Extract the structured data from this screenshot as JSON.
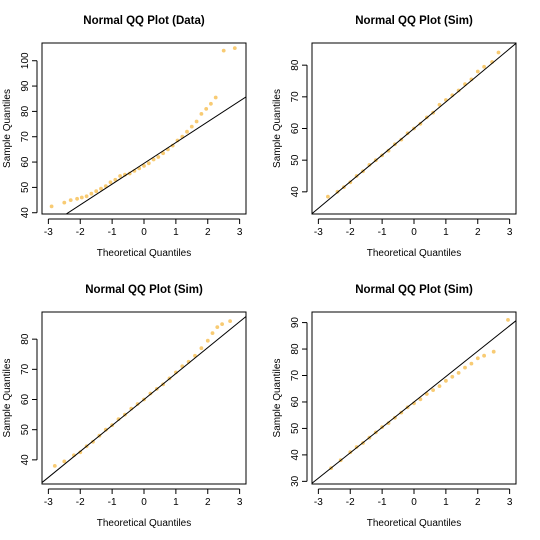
{
  "colors": {
    "points": "#F2A100",
    "line": "#000000"
  },
  "chart_data": [
    {
      "type": "scatter",
      "title": "Normal QQ Plot (Data)",
      "xlabel": "Theoretical Quantiles",
      "ylabel": "Sample Quantiles",
      "xlim": [
        -3.2,
        3.2
      ],
      "ylim": [
        39.5,
        107
      ],
      "xticks": [
        -3,
        -2,
        -1,
        0,
        1,
        2,
        3
      ],
      "yticks": [
        40,
        50,
        60,
        70,
        80,
        90,
        100
      ],
      "reference_line": {
        "intercept": 59.5,
        "slope": 8.2
      },
      "points": [
        [
          -2.9,
          42.5
        ],
        [
          -2.5,
          44
        ],
        [
          -2.3,
          45
        ],
        [
          -2.1,
          45.5
        ],
        [
          -1.95,
          46
        ],
        [
          -1.8,
          46.5
        ],
        [
          -1.65,
          47.5
        ],
        [
          -1.5,
          48.5
        ],
        [
          -1.35,
          49.5
        ],
        [
          -1.2,
          50.5
        ],
        [
          -1.05,
          52
        ],
        [
          -0.9,
          53
        ],
        [
          -0.75,
          54.5
        ],
        [
          -0.6,
          55
        ],
        [
          -0.45,
          55.5
        ],
        [
          -0.3,
          56.5
        ],
        [
          -0.15,
          57.5
        ],
        [
          0,
          58.5
        ],
        [
          0.15,
          59.5
        ],
        [
          0.3,
          61
        ],
        [
          0.45,
          62
        ],
        [
          0.6,
          63.5
        ],
        [
          0.75,
          65
        ],
        [
          0.9,
          66.5
        ],
        [
          1.05,
          68.5
        ],
        [
          1.2,
          70
        ],
        [
          1.35,
          72
        ],
        [
          1.5,
          74
        ],
        [
          1.65,
          76
        ],
        [
          1.8,
          79
        ],
        [
          1.95,
          81
        ],
        [
          2.1,
          83
        ],
        [
          2.25,
          85.5
        ],
        [
          2.5,
          104
        ],
        [
          2.85,
          105
        ]
      ]
    },
    {
      "type": "scatter",
      "title": "Normal QQ Plot (Sim)",
      "xlabel": "Theoretical Quantiles",
      "ylabel": "Sample Quantiles",
      "xlim": [
        -3.2,
        3.2
      ],
      "ylim": [
        33,
        87
      ],
      "xticks": [
        -3,
        -2,
        -1,
        0,
        1,
        2,
        3
      ],
      "yticks": [
        40,
        50,
        60,
        70,
        80
      ],
      "reference_line": {
        "intercept": 60,
        "slope": 8.4
      },
      "points": [
        [
          -2.7,
          38.5
        ],
        [
          -2.4,
          40
        ],
        [
          -2.2,
          41.5
        ],
        [
          -2.0,
          43
        ],
        [
          -1.8,
          45
        ],
        [
          -1.6,
          46.5
        ],
        [
          -1.4,
          48.5
        ],
        [
          -1.2,
          50
        ],
        [
          -1.0,
          51.5
        ],
        [
          -0.8,
          53
        ],
        [
          -0.6,
          55
        ],
        [
          -0.4,
          56.5
        ],
        [
          -0.2,
          58.5
        ],
        [
          0,
          60
        ],
        [
          0.2,
          61.5
        ],
        [
          0.4,
          63.5
        ],
        [
          0.6,
          65
        ],
        [
          0.8,
          67.5
        ],
        [
          1.0,
          69
        ],
        [
          1.2,
          70.5
        ],
        [
          1.4,
          72
        ],
        [
          1.6,
          74
        ],
        [
          1.8,
          75.5
        ],
        [
          2.0,
          78
        ],
        [
          2.2,
          79.5
        ],
        [
          2.45,
          81
        ],
        [
          2.65,
          84
        ]
      ]
    },
    {
      "type": "scatter",
      "title": "Normal QQ Plot (Sim)",
      "xlabel": "Theoretical Quantiles",
      "ylabel": "Sample Quantiles",
      "xlim": [
        -3.2,
        3.2
      ],
      "ylim": [
        32,
        89
      ],
      "xticks": [
        -3,
        -2,
        -1,
        0,
        1,
        2,
        3
      ],
      "yticks": [
        40,
        50,
        60,
        70,
        80
      ],
      "reference_line": {
        "intercept": 60,
        "slope": 8.6
      },
      "points": [
        [
          -2.8,
          38
        ],
        [
          -2.5,
          39.5
        ],
        [
          -2.2,
          41.5
        ],
        [
          -2.0,
          42.5
        ],
        [
          -1.8,
          44.5
        ],
        [
          -1.6,
          46
        ],
        [
          -1.4,
          48
        ],
        [
          -1.2,
          50
        ],
        [
          -1.0,
          51.5
        ],
        [
          -0.8,
          53.5
        ],
        [
          -0.6,
          55
        ],
        [
          -0.4,
          57
        ],
        [
          -0.2,
          58.5
        ],
        [
          0,
          60
        ],
        [
          0.2,
          62
        ],
        [
          0.4,
          63.5
        ],
        [
          0.6,
          65
        ],
        [
          0.8,
          67
        ],
        [
          1.0,
          69
        ],
        [
          1.2,
          71
        ],
        [
          1.4,
          72.5
        ],
        [
          1.6,
          74.5
        ],
        [
          1.8,
          77
        ],
        [
          2.0,
          79.5
        ],
        [
          2.15,
          82
        ],
        [
          2.3,
          84
        ],
        [
          2.45,
          85
        ],
        [
          2.7,
          86
        ]
      ]
    },
    {
      "type": "scatter",
      "title": "Normal QQ Plot (Sim)",
      "xlabel": "Theoretical Quantiles",
      "ylabel": "Sample Quantiles",
      "xlim": [
        -3.2,
        3.2
      ],
      "ylim": [
        29,
        94
      ],
      "xticks": [
        -3,
        -2,
        -1,
        0,
        1,
        2,
        3
      ],
      "yticks": [
        30,
        40,
        50,
        60,
        70,
        80,
        90
      ],
      "reference_line": {
        "intercept": 60,
        "slope": 9.6
      },
      "points": [
        [
          -2.6,
          35
        ],
        [
          -2.3,
          38
        ],
        [
          -2.0,
          41
        ],
        [
          -1.8,
          43
        ],
        [
          -1.6,
          44.5
        ],
        [
          -1.4,
          46.5
        ],
        [
          -1.2,
          48.5
        ],
        [
          -1.0,
          50.5
        ],
        [
          -0.8,
          52
        ],
        [
          -0.6,
          54
        ],
        [
          -0.4,
          56
        ],
        [
          -0.2,
          58
        ],
        [
          0,
          59.5
        ],
        [
          0.2,
          61
        ],
        [
          0.4,
          63
        ],
        [
          0.6,
          64.5
        ],
        [
          0.8,
          66
        ],
        [
          1.0,
          68
        ],
        [
          1.2,
          69.5
        ],
        [
          1.4,
          71
        ],
        [
          1.6,
          73
        ],
        [
          1.8,
          74.5
        ],
        [
          2.0,
          76.5
        ],
        [
          2.2,
          77.5
        ],
        [
          2.5,
          79
        ],
        [
          2.95,
          91
        ]
      ]
    }
  ]
}
